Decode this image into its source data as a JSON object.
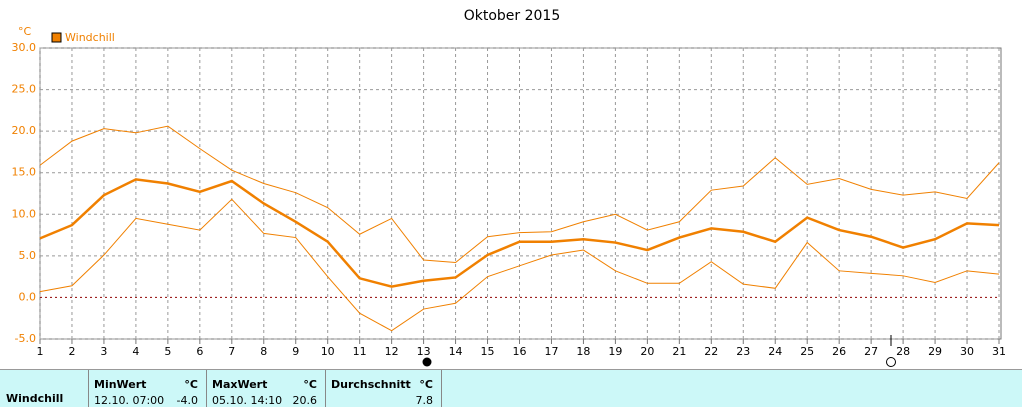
{
  "chart_data": {
    "type": "line",
    "title": "Oktober 2015",
    "y_unit": "°C",
    "x": [
      1,
      2,
      3,
      4,
      5,
      6,
      7,
      8,
      9,
      10,
      11,
      12,
      13,
      14,
      15,
      16,
      17,
      18,
      19,
      20,
      21,
      22,
      23,
      24,
      25,
      26,
      27,
      28,
      29,
      30,
      31
    ],
    "xlim": [
      1,
      31
    ],
    "xticks": [
      1,
      2,
      3,
      4,
      5,
      6,
      7,
      8,
      9,
      10,
      11,
      12,
      13,
      14,
      15,
      16,
      17,
      18,
      19,
      20,
      21,
      22,
      23,
      24,
      25,
      26,
      27,
      28,
      29,
      30,
      31
    ],
    "ylim": [
      -5,
      30
    ],
    "yticks": [
      {
        "value": -5,
        "label": "-5.0"
      },
      {
        "value": 0,
        "label": "0.0"
      },
      {
        "value": 5,
        "label": "5.0"
      },
      {
        "value": 10,
        "label": "10.0"
      },
      {
        "value": 15,
        "label": "15.0"
      },
      {
        "value": 20,
        "label": "20.0"
      },
      {
        "value": 25,
        "label": "25.0"
      },
      {
        "value": 30,
        "label": "30.0"
      }
    ],
    "grid": true,
    "series": [
      {
        "name": "Windchill",
        "color": "#f08000",
        "values": [
          7.1,
          8.7,
          12.3,
          14.2,
          13.7,
          12.7,
          14.0,
          11.3,
          9.1,
          6.7,
          2.3,
          1.3,
          2.0,
          2.4,
          5.1,
          6.7,
          6.7,
          7.0,
          6.6,
          5.7,
          7.2,
          8.3,
          7.9,
          6.7,
          9.6,
          8.1,
          7.3,
          6.0,
          7.0,
          8.9,
          8.7
        ]
      },
      {
        "color": "#f08000",
        "values": [
          15.9,
          18.8,
          20.3,
          19.8,
          20.6,
          17.9,
          15.3,
          13.7,
          12.6,
          10.8,
          7.6,
          9.5,
          4.5,
          4.2,
          7.3,
          7.8,
          7.9,
          9.1,
          10.0,
          8.1,
          9.1,
          12.9,
          13.4,
          16.8,
          13.6,
          14.3,
          13.0,
          12.3,
          12.7,
          11.9,
          16.2
        ]
      },
      {
        "color": "#f08000",
        "values": [
          0.7,
          1.4,
          5.1,
          9.5,
          8.8,
          8.1,
          11.8,
          7.7,
          7.2,
          2.5,
          -1.9,
          -4.0,
          -1.4,
          -0.7,
          2.5,
          3.8,
          5.1,
          5.7,
          3.2,
          1.7,
          1.7,
          4.3,
          1.6,
          1.1,
          6.6,
          3.2,
          2.9,
          2.6,
          1.8,
          3.2,
          2.8
        ]
      }
    ]
  },
  "table": {
    "row_label": "Windchill",
    "columns": [
      {
        "title": "MinWert",
        "unit": "°C",
        "time": "12.10. 07:00",
        "value": "-4.0"
      },
      {
        "title": "MaxWert",
        "unit": "°C",
        "time": "05.10. 14:10",
        "value": "20.6"
      },
      {
        "title": "Durchschnitt",
        "unit": "°C",
        "value": "7.8"
      }
    ]
  }
}
